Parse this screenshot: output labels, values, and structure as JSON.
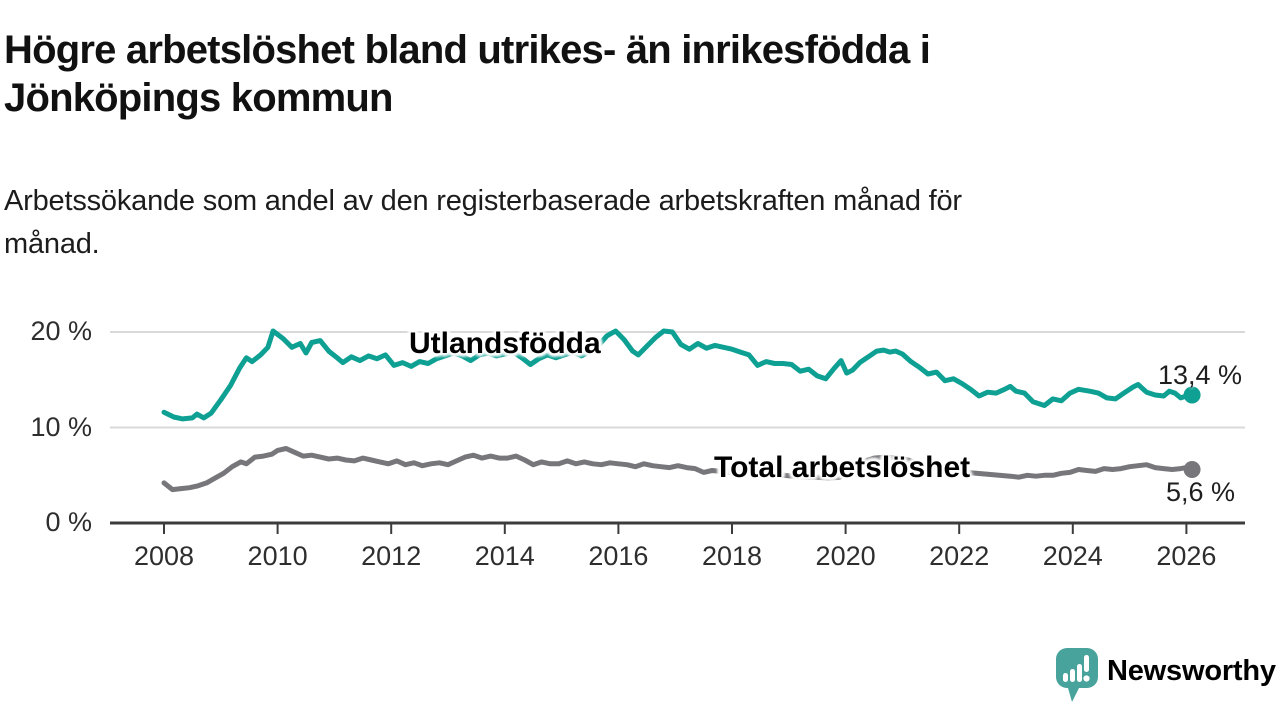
{
  "header": {
    "title_lines": [
      "Högre arbetslöshet bland utrikes- än inrikesfödda i",
      "Jönköpings kommun"
    ],
    "subtitle_lines": [
      "Arbetssökande som andel av den registerbaserade arbetskraften månad för",
      "månad."
    ]
  },
  "chart_data": {
    "type": "line",
    "title": "Högre arbetslöshet bland utrikes- än inrikesfödda i Jönköpings kommun",
    "subtitle": "Arbetssökande som andel av den registerbaserade arbetskraften månad för månad.",
    "unit": "%",
    "x_ticks": [
      2008,
      2010,
      2012,
      2014,
      2016,
      2018,
      2020,
      2022,
      2024,
      2026
    ],
    "y_ticks": [
      {
        "value": 0,
        "label": "0 %"
      },
      {
        "value": 10,
        "label": "10 %"
      },
      {
        "value": 20,
        "label": "20 %"
      }
    ],
    "xlim": [
      2007.05,
      2027.0
    ],
    "ylim": [
      0,
      21
    ],
    "grid": "horizontal",
    "colors": {
      "grid": "#D9D9D9",
      "axis": "#3C3C3C",
      "tick_text": "#2e2e2e"
    },
    "series": [
      {
        "name": "Utlandsfödda",
        "color": "#0FA094",
        "end_label": "13,4 %",
        "end_value": 13.4,
        "points": [
          [
            2008.0,
            11.6
          ],
          [
            2008.17,
            11.1
          ],
          [
            2008.33,
            10.9
          ],
          [
            2008.5,
            11.0
          ],
          [
            2008.58,
            11.4
          ],
          [
            2008.7,
            11.0
          ],
          [
            2008.83,
            11.5
          ],
          [
            2009.0,
            12.9
          ],
          [
            2009.17,
            14.4
          ],
          [
            2009.33,
            16.2
          ],
          [
            2009.45,
            17.3
          ],
          [
            2009.55,
            16.9
          ],
          [
            2009.7,
            17.6
          ],
          [
            2009.83,
            18.4
          ],
          [
            2009.92,
            20.1
          ],
          [
            2010.1,
            19.3
          ],
          [
            2010.25,
            18.4
          ],
          [
            2010.4,
            18.8
          ],
          [
            2010.5,
            17.8
          ],
          [
            2010.6,
            18.9
          ],
          [
            2010.75,
            19.1
          ],
          [
            2010.9,
            18.0
          ],
          [
            2011.05,
            17.3
          ],
          [
            2011.15,
            16.8
          ],
          [
            2011.3,
            17.4
          ],
          [
            2011.45,
            17.0
          ],
          [
            2011.6,
            17.5
          ],
          [
            2011.75,
            17.2
          ],
          [
            2011.9,
            17.6
          ],
          [
            2012.05,
            16.5
          ],
          [
            2012.2,
            16.8
          ],
          [
            2012.35,
            16.4
          ],
          [
            2012.5,
            16.9
          ],
          [
            2012.65,
            16.7
          ],
          [
            2012.8,
            17.2
          ],
          [
            2012.95,
            17.5
          ],
          [
            2013.1,
            17.8
          ],
          [
            2013.25,
            17.5
          ],
          [
            2013.4,
            17.0
          ],
          [
            2013.55,
            17.6
          ],
          [
            2013.7,
            17.8
          ],
          [
            2013.85,
            17.5
          ],
          [
            2014.0,
            17.7
          ],
          [
            2014.15,
            17.9
          ],
          [
            2014.3,
            17.3
          ],
          [
            2014.45,
            16.6
          ],
          [
            2014.6,
            17.2
          ],
          [
            2014.75,
            17.6
          ],
          [
            2014.9,
            17.3
          ],
          [
            2015.05,
            17.6
          ],
          [
            2015.2,
            17.9
          ],
          [
            2015.35,
            17.5
          ],
          [
            2015.5,
            18.0
          ],
          [
            2015.65,
            18.6
          ],
          [
            2015.8,
            19.6
          ],
          [
            2015.95,
            20.1
          ],
          [
            2016.1,
            19.2
          ],
          [
            2016.25,
            18.0
          ],
          [
            2016.35,
            17.6
          ],
          [
            2016.5,
            18.5
          ],
          [
            2016.65,
            19.4
          ],
          [
            2016.8,
            20.1
          ],
          [
            2016.95,
            20.0
          ],
          [
            2017.1,
            18.7
          ],
          [
            2017.25,
            18.2
          ],
          [
            2017.4,
            18.8
          ],
          [
            2017.55,
            18.3
          ],
          [
            2017.7,
            18.6
          ],
          [
            2017.85,
            18.4
          ],
          [
            2018.0,
            18.2
          ],
          [
            2018.15,
            17.9
          ],
          [
            2018.3,
            17.6
          ],
          [
            2018.45,
            16.5
          ],
          [
            2018.6,
            16.9
          ],
          [
            2018.75,
            16.7
          ],
          [
            2018.9,
            16.7
          ],
          [
            2019.05,
            16.6
          ],
          [
            2019.2,
            15.9
          ],
          [
            2019.35,
            16.1
          ],
          [
            2019.5,
            15.4
          ],
          [
            2019.65,
            15.1
          ],
          [
            2019.8,
            16.2
          ],
          [
            2019.92,
            17.0
          ],
          [
            2020.02,
            15.7
          ],
          [
            2020.12,
            16.0
          ],
          [
            2020.25,
            16.8
          ],
          [
            2020.4,
            17.4
          ],
          [
            2020.55,
            18.0
          ],
          [
            2020.67,
            18.1
          ],
          [
            2020.78,
            17.9
          ],
          [
            2020.88,
            18.0
          ],
          [
            2021.0,
            17.7
          ],
          [
            2021.15,
            16.9
          ],
          [
            2021.3,
            16.3
          ],
          [
            2021.45,
            15.6
          ],
          [
            2021.6,
            15.8
          ],
          [
            2021.75,
            14.9
          ],
          [
            2021.9,
            15.1
          ],
          [
            2022.05,
            14.6
          ],
          [
            2022.2,
            14.0
          ],
          [
            2022.35,
            13.3
          ],
          [
            2022.5,
            13.7
          ],
          [
            2022.65,
            13.6
          ],
          [
            2022.8,
            14.0
          ],
          [
            2022.9,
            14.3
          ],
          [
            2023.0,
            13.8
          ],
          [
            2023.15,
            13.6
          ],
          [
            2023.3,
            12.7
          ],
          [
            2023.5,
            12.3
          ],
          [
            2023.65,
            13.0
          ],
          [
            2023.8,
            12.8
          ],
          [
            2023.95,
            13.6
          ],
          [
            2024.1,
            14.0
          ],
          [
            2024.3,
            13.8
          ],
          [
            2024.45,
            13.6
          ],
          [
            2024.6,
            13.1
          ],
          [
            2024.75,
            13.0
          ],
          [
            2024.9,
            13.6
          ],
          [
            2025.05,
            14.2
          ],
          [
            2025.15,
            14.5
          ],
          [
            2025.3,
            13.7
          ],
          [
            2025.45,
            13.4
          ],
          [
            2025.6,
            13.3
          ],
          [
            2025.7,
            13.8
          ],
          [
            2025.8,
            13.6
          ],
          [
            2025.9,
            13.1
          ],
          [
            2026.0,
            13.3
          ],
          [
            2026.1,
            13.4
          ]
        ]
      },
      {
        "name": "Total arbetslöshet",
        "color": "#77777B",
        "end_label": "5,6 %",
        "end_value": 5.6,
        "points": [
          [
            2008.0,
            4.2
          ],
          [
            2008.15,
            3.5
          ],
          [
            2008.3,
            3.6
          ],
          [
            2008.45,
            3.7
          ],
          [
            2008.6,
            3.9
          ],
          [
            2008.75,
            4.2
          ],
          [
            2008.9,
            4.7
          ],
          [
            2009.05,
            5.2
          ],
          [
            2009.2,
            5.9
          ],
          [
            2009.35,
            6.4
          ],
          [
            2009.45,
            6.2
          ],
          [
            2009.6,
            6.9
          ],
          [
            2009.75,
            7.0
          ],
          [
            2009.9,
            7.2
          ],
          [
            2010.0,
            7.6
          ],
          [
            2010.15,
            7.8
          ],
          [
            2010.3,
            7.4
          ],
          [
            2010.45,
            7.0
          ],
          [
            2010.6,
            7.1
          ],
          [
            2010.75,
            6.9
          ],
          [
            2010.9,
            6.7
          ],
          [
            2011.05,
            6.8
          ],
          [
            2011.2,
            6.6
          ],
          [
            2011.35,
            6.5
          ],
          [
            2011.5,
            6.8
          ],
          [
            2011.65,
            6.6
          ],
          [
            2011.8,
            6.4
          ],
          [
            2011.95,
            6.2
          ],
          [
            2012.1,
            6.5
          ],
          [
            2012.25,
            6.1
          ],
          [
            2012.4,
            6.3
          ],
          [
            2012.55,
            6.0
          ],
          [
            2012.7,
            6.2
          ],
          [
            2012.85,
            6.3
          ],
          [
            2013.0,
            6.1
          ],
          [
            2013.15,
            6.5
          ],
          [
            2013.3,
            6.9
          ],
          [
            2013.45,
            7.1
          ],
          [
            2013.6,
            6.8
          ],
          [
            2013.75,
            7.0
          ],
          [
            2013.9,
            6.8
          ],
          [
            2014.05,
            6.8
          ],
          [
            2014.2,
            7.0
          ],
          [
            2014.35,
            6.6
          ],
          [
            2014.5,
            6.1
          ],
          [
            2014.65,
            6.4
          ],
          [
            2014.8,
            6.2
          ],
          [
            2014.95,
            6.2
          ],
          [
            2015.1,
            6.5
          ],
          [
            2015.25,
            6.2
          ],
          [
            2015.4,
            6.4
          ],
          [
            2015.55,
            6.2
          ],
          [
            2015.7,
            6.1
          ],
          [
            2015.85,
            6.3
          ],
          [
            2016.0,
            6.2
          ],
          [
            2016.15,
            6.1
          ],
          [
            2016.3,
            5.9
          ],
          [
            2016.45,
            6.2
          ],
          [
            2016.6,
            6.0
          ],
          [
            2016.75,
            5.9
          ],
          [
            2016.9,
            5.8
          ],
          [
            2017.05,
            6.0
          ],
          [
            2017.2,
            5.8
          ],
          [
            2017.35,
            5.7
          ],
          [
            2017.5,
            5.3
          ],
          [
            2017.65,
            5.5
          ],
          [
            2017.8,
            5.4
          ],
          [
            2017.95,
            5.3
          ],
          [
            2018.1,
            5.4
          ],
          [
            2018.3,
            5.2
          ],
          [
            2018.5,
            5.0
          ],
          [
            2018.7,
            5.1
          ],
          [
            2018.9,
            5.0
          ],
          [
            2019.1,
            4.9
          ],
          [
            2019.3,
            4.8
          ],
          [
            2019.5,
            4.8
          ],
          [
            2019.7,
            4.7
          ],
          [
            2019.9,
            4.8
          ],
          [
            2020.1,
            5.3
          ],
          [
            2020.3,
            6.4
          ],
          [
            2020.5,
            6.8
          ],
          [
            2020.7,
            6.9
          ],
          [
            2020.9,
            6.8
          ],
          [
            2021.1,
            6.6
          ],
          [
            2021.3,
            6.2
          ],
          [
            2021.5,
            5.9
          ],
          [
            2021.7,
            5.7
          ],
          [
            2021.9,
            5.5
          ],
          [
            2022.1,
            5.3
          ],
          [
            2022.3,
            5.2
          ],
          [
            2022.5,
            5.1
          ],
          [
            2022.7,
            5.0
          ],
          [
            2022.9,
            4.9
          ],
          [
            2023.05,
            4.8
          ],
          [
            2023.2,
            5.0
          ],
          [
            2023.35,
            4.9
          ],
          [
            2023.5,
            5.0
          ],
          [
            2023.65,
            5.0
          ],
          [
            2023.8,
            5.2
          ],
          [
            2023.95,
            5.3
          ],
          [
            2024.1,
            5.6
          ],
          [
            2024.25,
            5.5
          ],
          [
            2024.4,
            5.4
          ],
          [
            2024.55,
            5.7
          ],
          [
            2024.7,
            5.6
          ],
          [
            2024.85,
            5.7
          ],
          [
            2025.0,
            5.9
          ],
          [
            2025.15,
            6.0
          ],
          [
            2025.3,
            6.1
          ],
          [
            2025.45,
            5.8
          ],
          [
            2025.6,
            5.7
          ],
          [
            2025.75,
            5.6
          ],
          [
            2025.9,
            5.7
          ],
          [
            2026.0,
            5.8
          ],
          [
            2026.1,
            5.6
          ]
        ]
      }
    ]
  },
  "logo": {
    "text": "Newsworthy",
    "color": "#47A39B",
    "icon": "newsworthy-speech-bubble-chart-icon"
  }
}
